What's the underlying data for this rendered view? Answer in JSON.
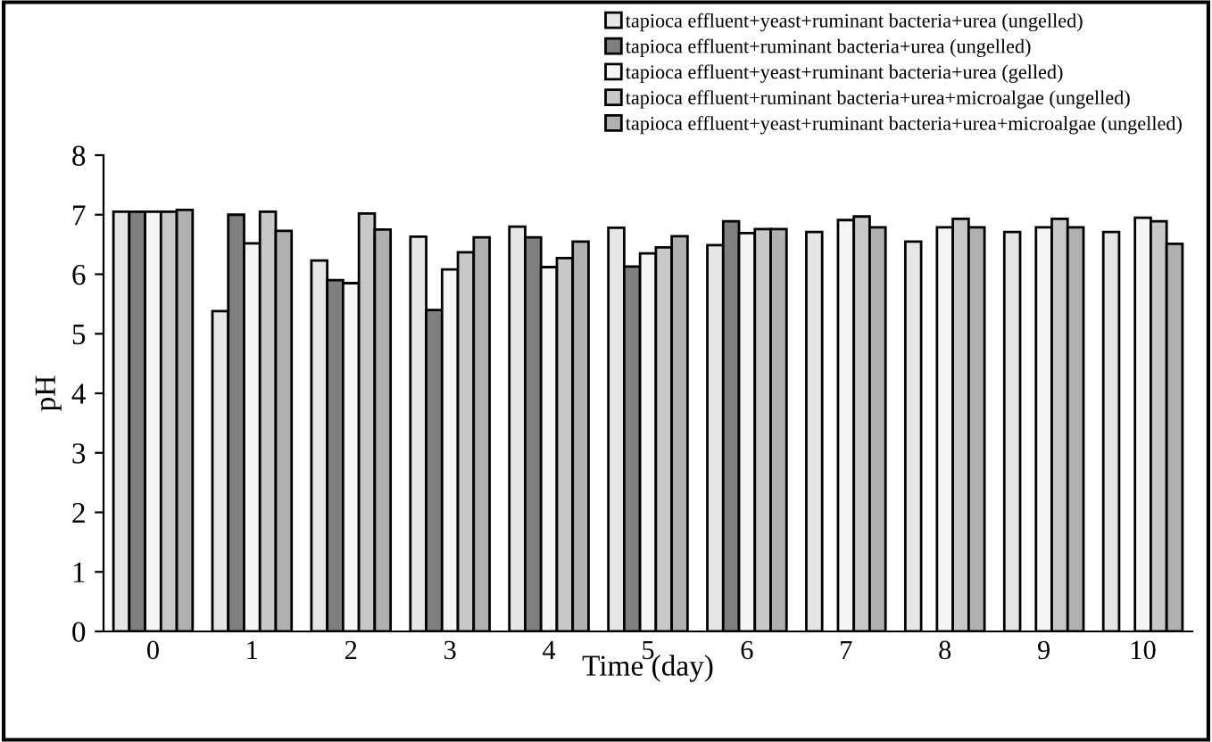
{
  "chart_data": {
    "type": "bar",
    "xlabel": "Time (day)",
    "ylabel": "pH",
    "categories": [
      "0",
      "1",
      "2",
      "3",
      "4",
      "5",
      "6",
      "7",
      "8",
      "9",
      "10"
    ],
    "series": [
      {
        "name": "tapioca effluent+yeast+ruminant bacteria+urea (ungelled)",
        "color": "#e6e6e6",
        "values": [
          7.05,
          5.38,
          6.23,
          6.63,
          6.8,
          6.78,
          6.49,
          6.71,
          6.55,
          6.71,
          6.71
        ]
      },
      {
        "name": "tapioca effluent+ruminant bacteria+urea (ungelled)",
        "color": "#7f7f7f",
        "values": [
          7.05,
          7.0,
          5.9,
          5.4,
          6.62,
          6.13,
          6.89,
          null,
          null,
          null,
          null
        ]
      },
      {
        "name": "tapioca effluent+yeast+ruminant bacteria+urea (gelled)",
        "color": "#f5f5f5",
        "values": [
          7.05,
          6.52,
          5.85,
          6.08,
          6.12,
          6.35,
          6.69,
          6.91,
          6.79,
          6.79,
          6.95
        ]
      },
      {
        "name": "tapioca effluent+ruminant bacteria+urea+microalgae (ungelled)",
        "color": "#c8c8c8",
        "values": [
          7.05,
          7.05,
          7.02,
          6.37,
          6.27,
          6.45,
          6.76,
          6.97,
          6.93,
          6.93,
          6.89
        ]
      },
      {
        "name": "tapioca effluent+yeast+ruminant bacteria+urea+microalgae (ungelled)",
        "color": "#b0b0b0",
        "values": [
          7.08,
          6.73,
          6.75,
          6.62,
          6.55,
          6.64,
          6.76,
          6.79,
          6.79,
          6.79,
          6.51
        ]
      }
    ],
    "ylim": [
      0,
      8
    ],
    "yticks": [
      0,
      1,
      2,
      3,
      4,
      5,
      6,
      7,
      8
    ],
    "legend": "top right",
    "grid": false
  }
}
